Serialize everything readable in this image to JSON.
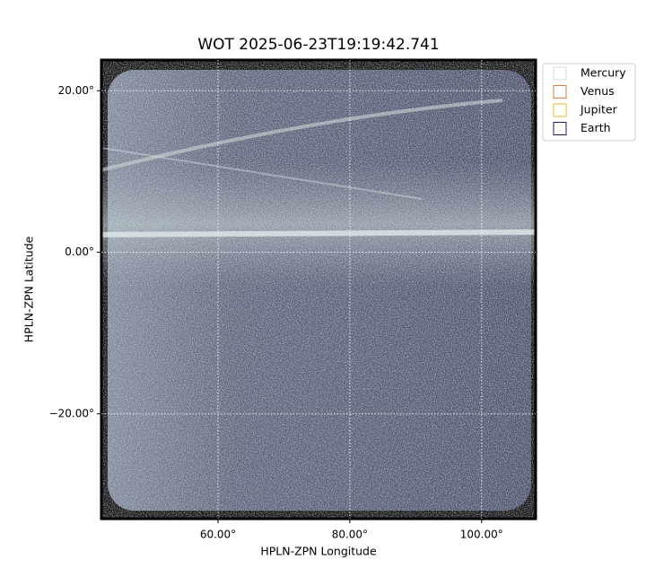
{
  "chart_data": {
    "type": "image",
    "title": "WOT 2025-06-23T19:19:42.741",
    "xlabel": "HPLN-ZPN Longitude",
    "ylabel": "HPLN-ZPN Latitude",
    "xlim": [
      42.3,
      108.2
    ],
    "ylim": [
      -33,
      23.8
    ],
    "xticks": [
      {
        "value": 60,
        "label": "60.00°"
      },
      {
        "value": 80,
        "label": "80.00°"
      },
      {
        "value": 100,
        "label": "100.00°"
      }
    ],
    "yticks": [
      {
        "value": -20,
        "label": "−20.00°"
      },
      {
        "value": 0,
        "label": "0.00°"
      },
      {
        "value": 20,
        "label": "20.00°"
      }
    ],
    "grid": true,
    "legend_position": "upper-right-outside",
    "series": [
      {
        "name": "Mercury",
        "color": "#d9d9d9"
      },
      {
        "name": "Venus",
        "color": "#e07b39"
      },
      {
        "name": "Jupiter",
        "color": "#e8b830"
      },
      {
        "name": "Earth",
        "color": "#1a1a7a"
      }
    ]
  }
}
